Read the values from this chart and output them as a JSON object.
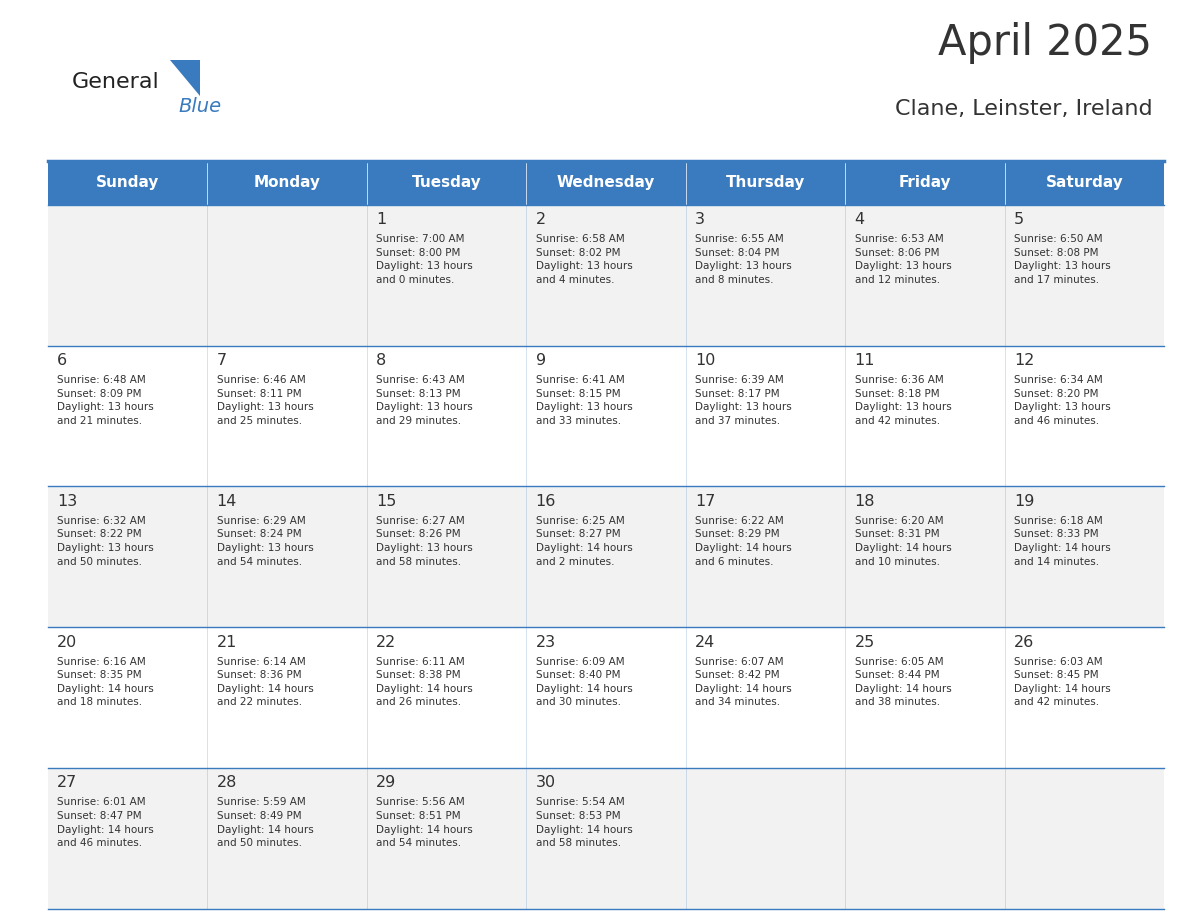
{
  "title": "April 2025",
  "subtitle": "Clane, Leinster, Ireland",
  "header_bg_color": "#3a7abf",
  "header_text_color": "#ffffff",
  "cell_bg_color_light": "#f2f2f2",
  "cell_bg_color_white": "#ffffff",
  "border_color": "#3a7abf",
  "text_color": "#333333",
  "days_of_week": [
    "Sunday",
    "Monday",
    "Tuesday",
    "Wednesday",
    "Thursday",
    "Friday",
    "Saturday"
  ],
  "weeks": [
    [
      {
        "day": "",
        "info": ""
      },
      {
        "day": "",
        "info": ""
      },
      {
        "day": "1",
        "info": "Sunrise: 7:00 AM\nSunset: 8:00 PM\nDaylight: 13 hours\nand 0 minutes."
      },
      {
        "day": "2",
        "info": "Sunrise: 6:58 AM\nSunset: 8:02 PM\nDaylight: 13 hours\nand 4 minutes."
      },
      {
        "day": "3",
        "info": "Sunrise: 6:55 AM\nSunset: 8:04 PM\nDaylight: 13 hours\nand 8 minutes."
      },
      {
        "day": "4",
        "info": "Sunrise: 6:53 AM\nSunset: 8:06 PM\nDaylight: 13 hours\nand 12 minutes."
      },
      {
        "day": "5",
        "info": "Sunrise: 6:50 AM\nSunset: 8:08 PM\nDaylight: 13 hours\nand 17 minutes."
      }
    ],
    [
      {
        "day": "6",
        "info": "Sunrise: 6:48 AM\nSunset: 8:09 PM\nDaylight: 13 hours\nand 21 minutes."
      },
      {
        "day": "7",
        "info": "Sunrise: 6:46 AM\nSunset: 8:11 PM\nDaylight: 13 hours\nand 25 minutes."
      },
      {
        "day": "8",
        "info": "Sunrise: 6:43 AM\nSunset: 8:13 PM\nDaylight: 13 hours\nand 29 minutes."
      },
      {
        "day": "9",
        "info": "Sunrise: 6:41 AM\nSunset: 8:15 PM\nDaylight: 13 hours\nand 33 minutes."
      },
      {
        "day": "10",
        "info": "Sunrise: 6:39 AM\nSunset: 8:17 PM\nDaylight: 13 hours\nand 37 minutes."
      },
      {
        "day": "11",
        "info": "Sunrise: 6:36 AM\nSunset: 8:18 PM\nDaylight: 13 hours\nand 42 minutes."
      },
      {
        "day": "12",
        "info": "Sunrise: 6:34 AM\nSunset: 8:20 PM\nDaylight: 13 hours\nand 46 minutes."
      }
    ],
    [
      {
        "day": "13",
        "info": "Sunrise: 6:32 AM\nSunset: 8:22 PM\nDaylight: 13 hours\nand 50 minutes."
      },
      {
        "day": "14",
        "info": "Sunrise: 6:29 AM\nSunset: 8:24 PM\nDaylight: 13 hours\nand 54 minutes."
      },
      {
        "day": "15",
        "info": "Sunrise: 6:27 AM\nSunset: 8:26 PM\nDaylight: 13 hours\nand 58 minutes."
      },
      {
        "day": "16",
        "info": "Sunrise: 6:25 AM\nSunset: 8:27 PM\nDaylight: 14 hours\nand 2 minutes."
      },
      {
        "day": "17",
        "info": "Sunrise: 6:22 AM\nSunset: 8:29 PM\nDaylight: 14 hours\nand 6 minutes."
      },
      {
        "day": "18",
        "info": "Sunrise: 6:20 AM\nSunset: 8:31 PM\nDaylight: 14 hours\nand 10 minutes."
      },
      {
        "day": "19",
        "info": "Sunrise: 6:18 AM\nSunset: 8:33 PM\nDaylight: 14 hours\nand 14 minutes."
      }
    ],
    [
      {
        "day": "20",
        "info": "Sunrise: 6:16 AM\nSunset: 8:35 PM\nDaylight: 14 hours\nand 18 minutes."
      },
      {
        "day": "21",
        "info": "Sunrise: 6:14 AM\nSunset: 8:36 PM\nDaylight: 14 hours\nand 22 minutes."
      },
      {
        "day": "22",
        "info": "Sunrise: 6:11 AM\nSunset: 8:38 PM\nDaylight: 14 hours\nand 26 minutes."
      },
      {
        "day": "23",
        "info": "Sunrise: 6:09 AM\nSunset: 8:40 PM\nDaylight: 14 hours\nand 30 minutes."
      },
      {
        "day": "24",
        "info": "Sunrise: 6:07 AM\nSunset: 8:42 PM\nDaylight: 14 hours\nand 34 minutes."
      },
      {
        "day": "25",
        "info": "Sunrise: 6:05 AM\nSunset: 8:44 PM\nDaylight: 14 hours\nand 38 minutes."
      },
      {
        "day": "26",
        "info": "Sunrise: 6:03 AM\nSunset: 8:45 PM\nDaylight: 14 hours\nand 42 minutes."
      }
    ],
    [
      {
        "day": "27",
        "info": "Sunrise: 6:01 AM\nSunset: 8:47 PM\nDaylight: 14 hours\nand 46 minutes."
      },
      {
        "day": "28",
        "info": "Sunrise: 5:59 AM\nSunset: 8:49 PM\nDaylight: 14 hours\nand 50 minutes."
      },
      {
        "day": "29",
        "info": "Sunrise: 5:56 AM\nSunset: 8:51 PM\nDaylight: 14 hours\nand 54 minutes."
      },
      {
        "day": "30",
        "info": "Sunrise: 5:54 AM\nSunset: 8:53 PM\nDaylight: 14 hours\nand 58 minutes."
      },
      {
        "day": "",
        "info": ""
      },
      {
        "day": "",
        "info": ""
      },
      {
        "day": "",
        "info": ""
      }
    ]
  ],
  "logo_general_color": "#222222",
  "logo_blue_color": "#3a7abf",
  "logo_triangle_color": "#3a7abf"
}
